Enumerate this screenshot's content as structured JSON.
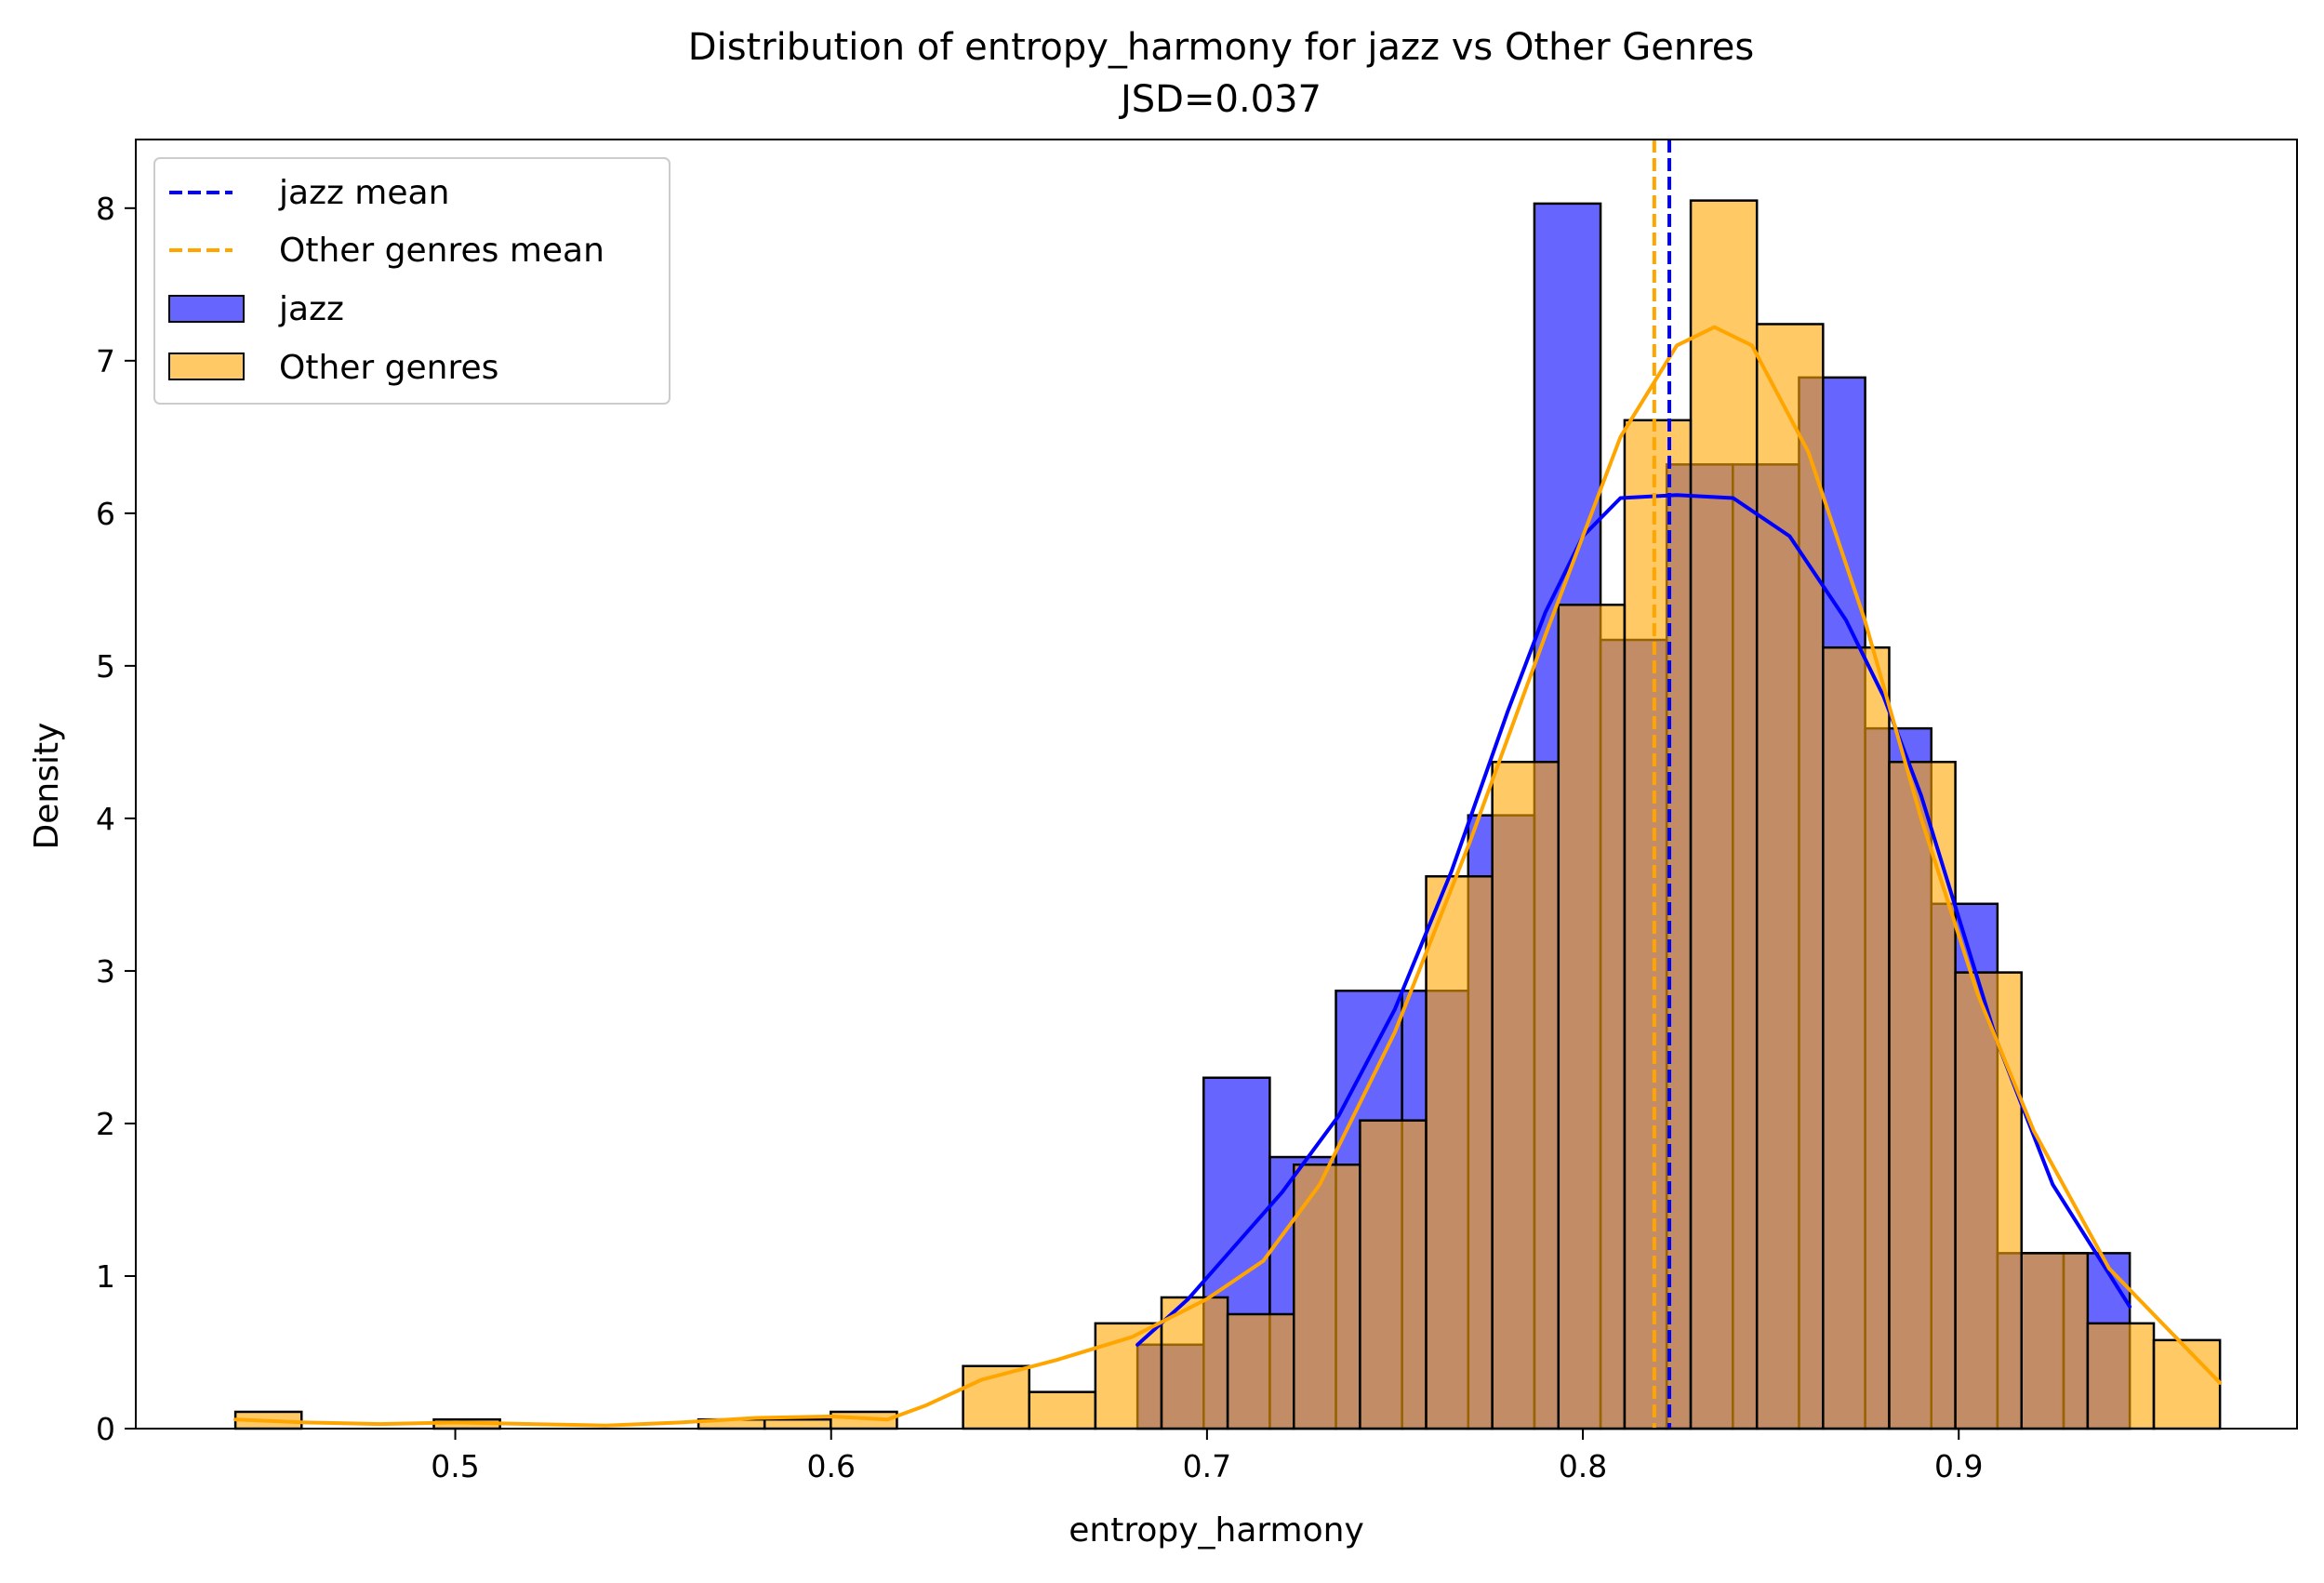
{
  "chart_data": {
    "type": "bar",
    "subtype": "histogram-with-kde",
    "title": "Distribution of entropy_harmony for jazz vs Other Genres",
    "subtitle": "JSD=0.037",
    "xlabel": "entropy_harmony",
    "ylabel": "Density",
    "xlim": [
      0.415,
      0.99
    ],
    "ylim": [
      0,
      8.45
    ],
    "xticks": [
      0.5,
      0.6,
      0.7,
      0.8,
      0.9
    ],
    "xtick_labels": [
      "0.5",
      "0.6",
      "0.7",
      "0.8",
      "0.9"
    ],
    "yticks": [
      0,
      1,
      2,
      3,
      4,
      5,
      6,
      7,
      8
    ],
    "ytick_labels": [
      "0",
      "1",
      "2",
      "3",
      "4",
      "5",
      "6",
      "7",
      "8"
    ],
    "grid": false,
    "legend_position": "upper-left",
    "legend": [
      "jazz mean",
      "Other genres mean",
      "jazz",
      "Other genres"
    ],
    "colors": {
      "jazz": "#0000ff",
      "other": "#ffa500",
      "bar_edge": "#000000"
    },
    "series": [
      {
        "name": "jazz",
        "kind": "histogram",
        "bins": [
          {
            "x0": 0.6815,
            "x1": 0.6991,
            "y": 0.55
          },
          {
            "x0": 0.6991,
            "x1": 0.7167,
            "y": 2.3
          },
          {
            "x0": 0.7167,
            "x1": 0.7343,
            "y": 1.78
          },
          {
            "x0": 0.7343,
            "x1": 0.7519,
            "y": 2.87
          },
          {
            "x0": 0.7519,
            "x1": 0.7695,
            "y": 2.87
          },
          {
            "x0": 0.7695,
            "x1": 0.7871,
            "y": 4.02
          },
          {
            "x0": 0.7871,
            "x1": 0.8047,
            "y": 8.03
          },
          {
            "x0": 0.8047,
            "x1": 0.8223,
            "y": 5.17
          },
          {
            "x0": 0.8223,
            "x1": 0.8399,
            "y": 6.32
          },
          {
            "x0": 0.8399,
            "x1": 0.8575,
            "y": 6.32
          },
          {
            "x0": 0.8575,
            "x1": 0.8751,
            "y": 6.89
          },
          {
            "x0": 0.8751,
            "x1": 0.8927,
            "y": 4.59
          },
          {
            "x0": 0.8927,
            "x1": 0.9103,
            "y": 3.44
          },
          {
            "x0": 0.9103,
            "x1": 0.9279,
            "y": 1.15
          },
          {
            "x0": 0.9279,
            "x1": 0.9455,
            "y": 1.15
          }
        ]
      },
      {
        "name": "Other genres",
        "kind": "histogram",
        "bins": [
          {
            "x0": 0.4415,
            "x1": 0.4591,
            "y": 0.11
          },
          {
            "x0": 0.4591,
            "x1": 0.4767,
            "y": 0.0
          },
          {
            "x0": 0.4767,
            "x1": 0.4943,
            "y": 0.0
          },
          {
            "x0": 0.4943,
            "x1": 0.5119,
            "y": 0.06
          },
          {
            "x0": 0.5119,
            "x1": 0.5295,
            "y": 0.0
          },
          {
            "x0": 0.5295,
            "x1": 0.5471,
            "y": 0.0
          },
          {
            "x0": 0.5471,
            "x1": 0.5647,
            "y": 0.0
          },
          {
            "x0": 0.5647,
            "x1": 0.5823,
            "y": 0.06
          },
          {
            "x0": 0.5823,
            "x1": 0.5999,
            "y": 0.06
          },
          {
            "x0": 0.5999,
            "x1": 0.6175,
            "y": 0.11
          },
          {
            "x0": 0.6175,
            "x1": 0.6351,
            "y": 0.0
          },
          {
            "x0": 0.6351,
            "x1": 0.6527,
            "y": 0.41
          },
          {
            "x0": 0.6527,
            "x1": 0.6703,
            "y": 0.24
          },
          {
            "x0": 0.6703,
            "x1": 0.6879,
            "y": 0.69
          },
          {
            "x0": 0.6879,
            "x1": 0.7055,
            "y": 0.86
          },
          {
            "x0": 0.7055,
            "x1": 0.7231,
            "y": 0.75
          },
          {
            "x0": 0.7231,
            "x1": 0.7407,
            "y": 1.73
          },
          {
            "x0": 0.7407,
            "x1": 0.7583,
            "y": 2.02
          },
          {
            "x0": 0.7583,
            "x1": 0.7759,
            "y": 3.62
          },
          {
            "x0": 0.7759,
            "x1": 0.7935,
            "y": 4.37
          },
          {
            "x0": 0.7935,
            "x1": 0.8111,
            "y": 5.4
          },
          {
            "x0": 0.8111,
            "x1": 0.8287,
            "y": 6.61
          },
          {
            "x0": 0.8287,
            "x1": 0.8463,
            "y": 8.05
          },
          {
            "x0": 0.8463,
            "x1": 0.8639,
            "y": 7.24
          },
          {
            "x0": 0.8639,
            "x1": 0.8815,
            "y": 5.12
          },
          {
            "x0": 0.8815,
            "x1": 0.8991,
            "y": 4.37
          },
          {
            "x0": 0.8991,
            "x1": 0.9167,
            "y": 2.99
          },
          {
            "x0": 0.9167,
            "x1": 0.9343,
            "y": 1.15
          },
          {
            "x0": 0.9343,
            "x1": 0.9519,
            "y": 0.69
          },
          {
            "x0": 0.9519,
            "x1": 0.9695,
            "y": 0.58
          }
        ]
      },
      {
        "name": "jazz",
        "kind": "kde",
        "x": [
          0.6815,
          0.695,
          0.7075,
          0.72,
          0.735,
          0.75,
          0.765,
          0.78,
          0.79,
          0.8,
          0.81,
          0.825,
          0.84,
          0.855,
          0.87,
          0.88,
          0.89,
          0.9,
          0.91,
          0.925,
          0.9455
        ],
        "y": [
          0.55,
          0.85,
          1.2,
          1.55,
          2.05,
          2.75,
          3.65,
          4.7,
          5.35,
          5.85,
          6.1,
          6.12,
          6.1,
          5.85,
          5.3,
          4.8,
          4.15,
          3.35,
          2.55,
          1.6,
          0.8
        ]
      },
      {
        "name": "Other genres",
        "kind": "kde",
        "x": [
          0.4415,
          0.46,
          0.48,
          0.5,
          0.52,
          0.54,
          0.56,
          0.58,
          0.6,
          0.615,
          0.625,
          0.64,
          0.66,
          0.68,
          0.7,
          0.715,
          0.73,
          0.75,
          0.77,
          0.79,
          0.81,
          0.825,
          0.835,
          0.845,
          0.86,
          0.875,
          0.89,
          0.905,
          0.92,
          0.94,
          0.9695
        ],
        "y": [
          0.06,
          0.04,
          0.03,
          0.04,
          0.03,
          0.02,
          0.04,
          0.07,
          0.08,
          0.06,
          0.15,
          0.32,
          0.45,
          0.6,
          0.85,
          1.1,
          1.6,
          2.6,
          3.85,
          5.2,
          6.5,
          7.1,
          7.22,
          7.1,
          6.4,
          5.3,
          4.0,
          2.85,
          1.95,
          1.05,
          0.3
        ]
      }
    ],
    "reference_lines": [
      {
        "name": "jazz mean",
        "x": 0.823,
        "style": "dashed",
        "color": "#0000ff"
      },
      {
        "name": "Other genres mean",
        "x": 0.819,
        "style": "dashed",
        "color": "#ffa500"
      }
    ]
  }
}
